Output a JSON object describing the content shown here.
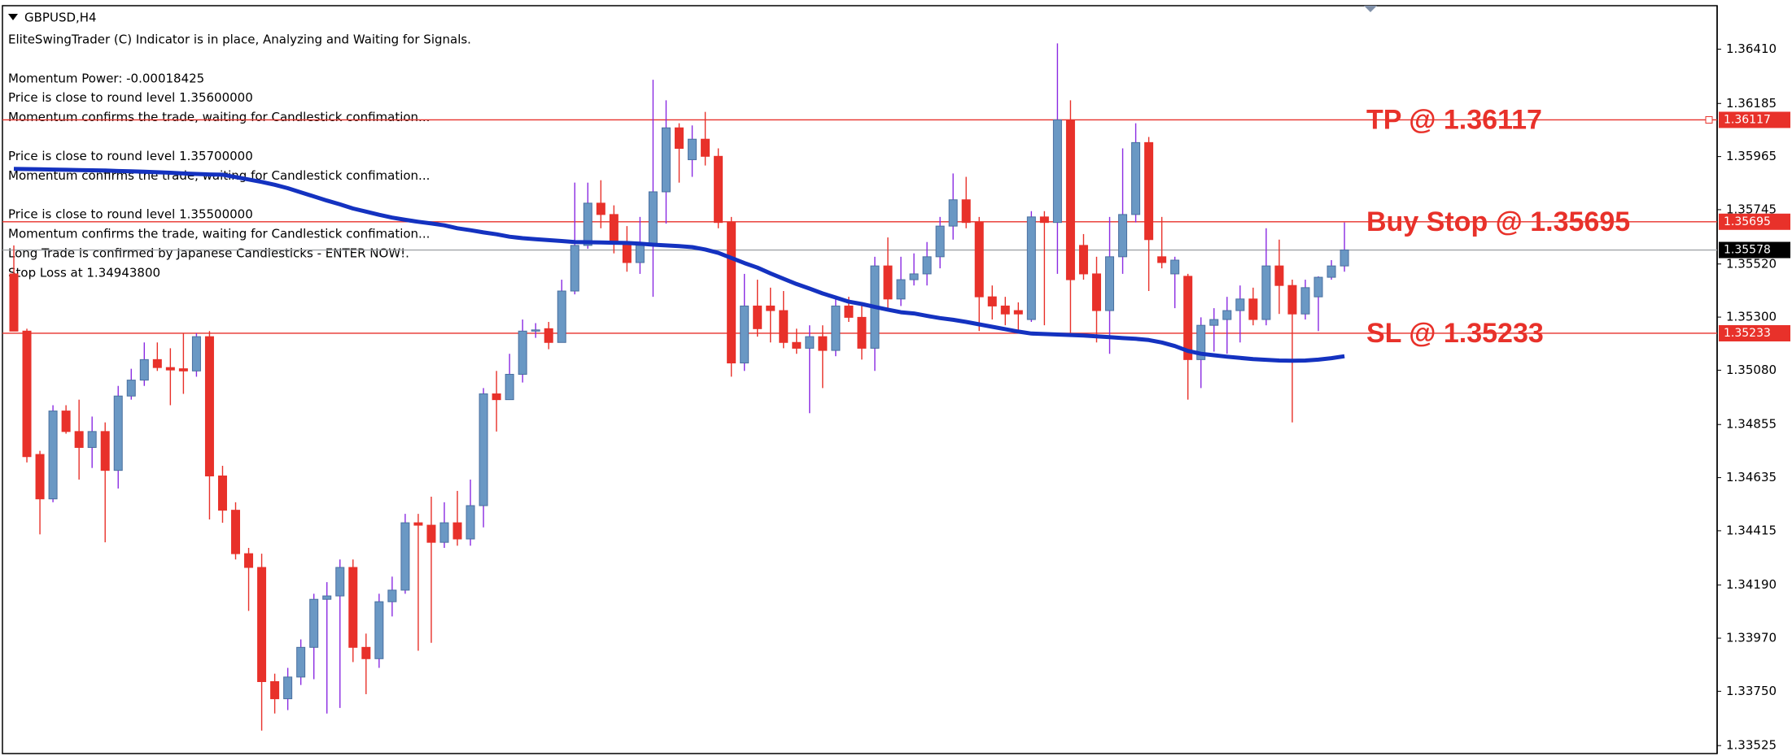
{
  "chart_data": {
    "type": "candlestick",
    "symbol": "GBPUSD,H4",
    "comments": [
      "EliteSwingTrader (C) Indicator is in place, Analyzing and Waiting for Signals.",
      "Momentum Power: -0.00018425",
      "Price is close to round level 1.35600000",
      "Momentum confirms the trade, waiting for Candlestick confimation...",
      "Price is close to round level 1.35700000",
      "Momentum confirms the trade, waiting for Candlestick confimation...",
      "Price is close to round level 1.35500000",
      "Momentum confirms the trade, waiting for Candlestick confimation...",
      "Long Trade is confirmed by Japanese Candlesticks - ENTER NOW!.",
      "Stop Loss at 1.34943800"
    ],
    "ylim": [
      1.33492,
      1.3659
    ],
    "yticks": [
      {
        "value": 1.3641,
        "label": "1.36410"
      },
      1.36185,
      1.35965,
      1.35745,
      {
        "value": 1.3552,
        "label": "1.35520"
      },
      {
        "value": 1.353,
        "label": "1.35300"
      },
      {
        "value": 1.3508,
        "label": "1.35080"
      },
      1.34855,
      1.34635,
      1.34415,
      {
        "value": 1.3419,
        "label": "1.34190"
      },
      {
        "value": 1.3397,
        "label": "1.33970"
      },
      {
        "value": 1.3375,
        "label": "1.33750"
      },
      1.33525
    ],
    "grid": false,
    "up_color": "#6a98c4",
    "up_wick_color": "#8a2be2",
    "down_color": "#e8312a",
    "current_price_color": "#a0a4a8",
    "candles": [
      [
        1.35479,
        1.35597,
        1.35242,
        1.35242
      ],
      [
        1.35242,
        1.35252,
        1.34698,
        1.34722
      ],
      [
        1.34731,
        1.34746,
        1.344,
        1.34547
      ],
      [
        1.34547,
        1.34935,
        1.34533,
        1.34911
      ],
      [
        1.34911,
        1.34935,
        1.34817,
        1.34826
      ],
      [
        1.34826,
        1.34958,
        1.34627,
        1.3476
      ],
      [
        1.3476,
        1.34888,
        1.34675,
        1.34826
      ],
      [
        1.34826,
        1.34864,
        1.34367,
        1.34665
      ],
      [
        1.34665,
        1.35015,
        1.3459,
        1.34973
      ],
      [
        1.34973,
        1.35086,
        1.34958,
        1.35039
      ],
      [
        1.35039,
        1.35195,
        1.35015,
        1.35124
      ],
      [
        1.35124,
        1.35195,
        1.35077,
        1.35091
      ],
      [
        1.35091,
        1.35171,
        1.34935,
        1.35081
      ],
      [
        1.35086,
        1.35233,
        1.34982,
        1.35077
      ],
      [
        1.35077,
        1.35233,
        1.35053,
        1.35219
      ],
      [
        1.35219,
        1.35242,
        1.34462,
        1.34642
      ],
      [
        1.34642,
        1.34684,
        1.34448,
        1.345
      ],
      [
        1.345,
        1.34533,
        1.34296,
        1.3432
      ],
      [
        1.3432,
        1.34344,
        1.34083,
        1.34263
      ],
      [
        1.34263,
        1.3432,
        1.33587,
        1.3379
      ],
      [
        1.3379,
        1.33823,
        1.33658,
        1.33719
      ],
      [
        1.33719,
        1.33847,
        1.33672,
        1.33809
      ],
      [
        1.33809,
        1.33965,
        1.33776,
        1.33932
      ],
      [
        1.33932,
        1.34154,
        1.338,
        1.34131
      ],
      [
        1.34131,
        1.34202,
        1.33658,
        1.34145
      ],
      [
        1.34145,
        1.34296,
        1.33681,
        1.34263
      ],
      [
        1.34263,
        1.34296,
        1.33871,
        1.33932
      ],
      [
        1.33932,
        1.33989,
        1.33738,
        1.33885
      ],
      [
        1.33885,
        1.34154,
        1.33847,
        1.34121
      ],
      [
        1.34121,
        1.34225,
        1.3406,
        1.34169
      ],
      [
        1.34169,
        1.34485,
        1.34154,
        1.34448
      ],
      [
        1.34448,
        1.34485,
        1.33918,
        1.34438
      ],
      [
        1.34438,
        1.34556,
        1.33951,
        1.34367
      ],
      [
        1.34367,
        1.34533,
        1.34344,
        1.34448
      ],
      [
        1.34448,
        1.3458,
        1.34353,
        1.34381
      ],
      [
        1.34381,
        1.34627,
        1.34353,
        1.34519
      ],
      [
        1.34519,
        1.35006,
        1.34429,
        1.34982
      ],
      [
        1.34982,
        1.35077,
        1.34826,
        1.34958
      ],
      [
        1.34958,
        1.35148,
        1.34958,
        1.35063
      ],
      [
        1.35063,
        1.3529,
        1.35029,
        1.35242
      ],
      [
        1.35242,
        1.35275,
        1.35214,
        1.35247
      ],
      [
        1.35252,
        1.3528,
        1.35167,
        1.35195
      ],
      [
        1.35195,
        1.35455,
        1.35195,
        1.35408
      ],
      [
        1.35408,
        1.35857,
        1.35394,
        1.35597
      ],
      [
        1.35597,
        1.35857,
        1.35583,
        1.35772
      ],
      [
        1.35772,
        1.35867,
        1.35668,
        1.35725
      ],
      [
        1.35725,
        1.35763,
        1.35564,
        1.35607
      ],
      [
        1.35607,
        1.35677,
        1.35488,
        1.35526
      ],
      [
        1.35526,
        1.35715,
        1.35479,
        1.35597
      ],
      [
        1.35597,
        1.36283,
        1.35384,
        1.35819
      ],
      [
        1.35819,
        1.36198,
        1.35687,
        1.36084
      ],
      [
        1.36084,
        1.36103,
        1.35857,
        1.35999
      ],
      [
        1.35952,
        1.36094,
        1.35881,
        1.36037
      ],
      [
        1.36037,
        1.3615,
        1.35928,
        1.35966
      ],
      [
        1.35966,
        1.35999,
        1.35668,
        1.35692
      ],
      [
        1.35692,
        1.35715,
        1.35053,
        1.3511
      ],
      [
        1.3511,
        1.35479,
        1.35077,
        1.35346
      ],
      [
        1.35346,
        1.35455,
        1.35219,
        1.35252
      ],
      [
        1.35346,
        1.35422,
        1.35195,
        1.35327
      ],
      [
        1.35327,
        1.35408,
        1.35171,
        1.35195
      ],
      [
        1.35195,
        1.35252,
        1.35148,
        1.35171
      ],
      [
        1.35171,
        1.35266,
        1.34902,
        1.35219
      ],
      [
        1.35219,
        1.35266,
        1.35006,
        1.35162
      ],
      [
        1.35162,
        1.35384,
        1.35138,
        1.35346
      ],
      [
        1.35346,
        1.35384,
        1.3528,
        1.35299
      ],
      [
        1.35299,
        1.35361,
        1.35124,
        1.35171
      ],
      [
        1.35171,
        1.3555,
        1.35077,
        1.35512
      ],
      [
        1.35512,
        1.3563,
        1.35337,
        1.35375
      ],
      [
        1.35375,
        1.3555,
        1.35346,
        1.35455
      ],
      [
        1.35455,
        1.35564,
        1.35431,
        1.35479
      ],
      [
        1.35479,
        1.35611,
        1.35431,
        1.3555
      ],
      [
        1.3555,
        1.35715,
        1.35502,
        1.35677
      ],
      [
        1.35677,
        1.35895,
        1.35621,
        1.35786
      ],
      [
        1.35786,
        1.35881,
        1.35668,
        1.35692
      ],
      [
        1.35692,
        1.35715,
        1.35242,
        1.35384
      ],
      [
        1.35384,
        1.35431,
        1.3529,
        1.35346
      ],
      [
        1.35346,
        1.35384,
        1.35266,
        1.35313
      ],
      [
        1.35327,
        1.35361,
        1.35233,
        1.35313
      ],
      [
        1.3529,
        1.35739,
        1.3528,
        1.35715
      ],
      [
        1.35715,
        1.35739,
        1.35266,
        1.35692
      ],
      [
        1.35692,
        1.36434,
        1.35479,
        1.36117
      ],
      [
        1.36117,
        1.36198,
        1.35219,
        1.35455
      ],
      [
        1.35597,
        1.35644,
        1.35455,
        1.35479
      ],
      [
        1.35479,
        1.3555,
        1.35195,
        1.35327
      ],
      [
        1.35327,
        1.35715,
        1.35148,
        1.3555
      ],
      [
        1.3555,
        1.35999,
        1.35479,
        1.35725
      ],
      [
        1.35725,
        1.36103,
        1.35692,
        1.36023
      ],
      [
        1.36023,
        1.36046,
        1.35408,
        1.35621
      ],
      [
        1.3555,
        1.35715,
        1.35502,
        1.35526
      ],
      [
        1.35479,
        1.3555,
        1.35337,
        1.35536
      ],
      [
        1.35469,
        1.35479,
        1.34958,
        1.35124
      ],
      [
        1.35124,
        1.35299,
        1.35006,
        1.35266
      ],
      [
        1.35266,
        1.35337,
        1.35157,
        1.3529
      ],
      [
        1.3529,
        1.35384,
        1.35148,
        1.35327
      ],
      [
        1.35327,
        1.35431,
        1.35195,
        1.35375
      ],
      [
        1.35375,
        1.35422,
        1.35266,
        1.3529
      ],
      [
        1.3529,
        1.35668,
        1.35266,
        1.35512
      ],
      [
        1.35512,
        1.35621,
        1.35313,
        1.35431
      ],
      [
        1.35431,
        1.35455,
        1.34864,
        1.35313
      ],
      [
        1.35313,
        1.35455,
        1.3529,
        1.35422
      ],
      [
        1.35384,
        1.35469,
        1.35242,
        1.35465
      ],
      [
        1.35465,
        1.35536,
        1.35455,
        1.35512
      ],
      [
        1.35512,
        1.35692,
        1.35488,
        1.35578
      ]
    ],
    "moving_average": {
      "color": "#1432c0",
      "values": [
        1.35914,
        1.35913,
        1.35912,
        1.35911,
        1.3591,
        1.35909,
        1.35908,
        1.35907,
        1.35905,
        1.35904,
        1.35902,
        1.359,
        1.35898,
        1.35895,
        1.35893,
        1.35891,
        1.3589,
        1.3588,
        1.3587,
        1.3586,
        1.35848,
        1.35834,
        1.35817,
        1.358,
        1.35783,
        1.35767,
        1.3575,
        1.35737,
        1.35724,
        1.35712,
        1.35703,
        1.35695,
        1.35688,
        1.3568,
        1.35668,
        1.3566,
        1.35651,
        1.35643,
        1.35633,
        1.35627,
        1.35623,
        1.35619,
        1.35615,
        1.35611,
        1.3561,
        1.35609,
        1.35608,
        1.35607,
        1.35604,
        1.356,
        1.35597,
        1.35594,
        1.3559,
        1.3558,
        1.35566,
        1.35545,
        1.35524,
        1.35505,
        1.35481,
        1.35459,
        1.35437,
        1.35418,
        1.35398,
        1.35381,
        1.35364,
        1.35354,
        1.35342,
        1.35331,
        1.3532,
        1.35315,
        1.35305,
        1.35296,
        1.35289,
        1.3528,
        1.3527,
        1.3526,
        1.3525,
        1.3524,
        1.35232,
        1.3523,
        1.35228,
        1.35226,
        1.35224,
        1.3522,
        1.35217,
        1.35213,
        1.3521,
        1.35205,
        1.35195,
        1.3518,
        1.3516,
        1.35148,
        1.35142,
        1.35136,
        1.35131,
        1.35126,
        1.35123,
        1.3512,
        1.35119,
        1.3512,
        1.35124,
        1.3513,
        1.35138
      ]
    },
    "levels": [
      {
        "label": "TP @ 1.36117",
        "value": 1.36117,
        "color": "#e8312a"
      },
      {
        "label": "Buy Stop @ 1.35695",
        "value": 1.35695,
        "color": "#e8312a"
      },
      {
        "label": "SL @ 1.35233",
        "value": 1.35233,
        "color": "#e8312a"
      }
    ]
  }
}
